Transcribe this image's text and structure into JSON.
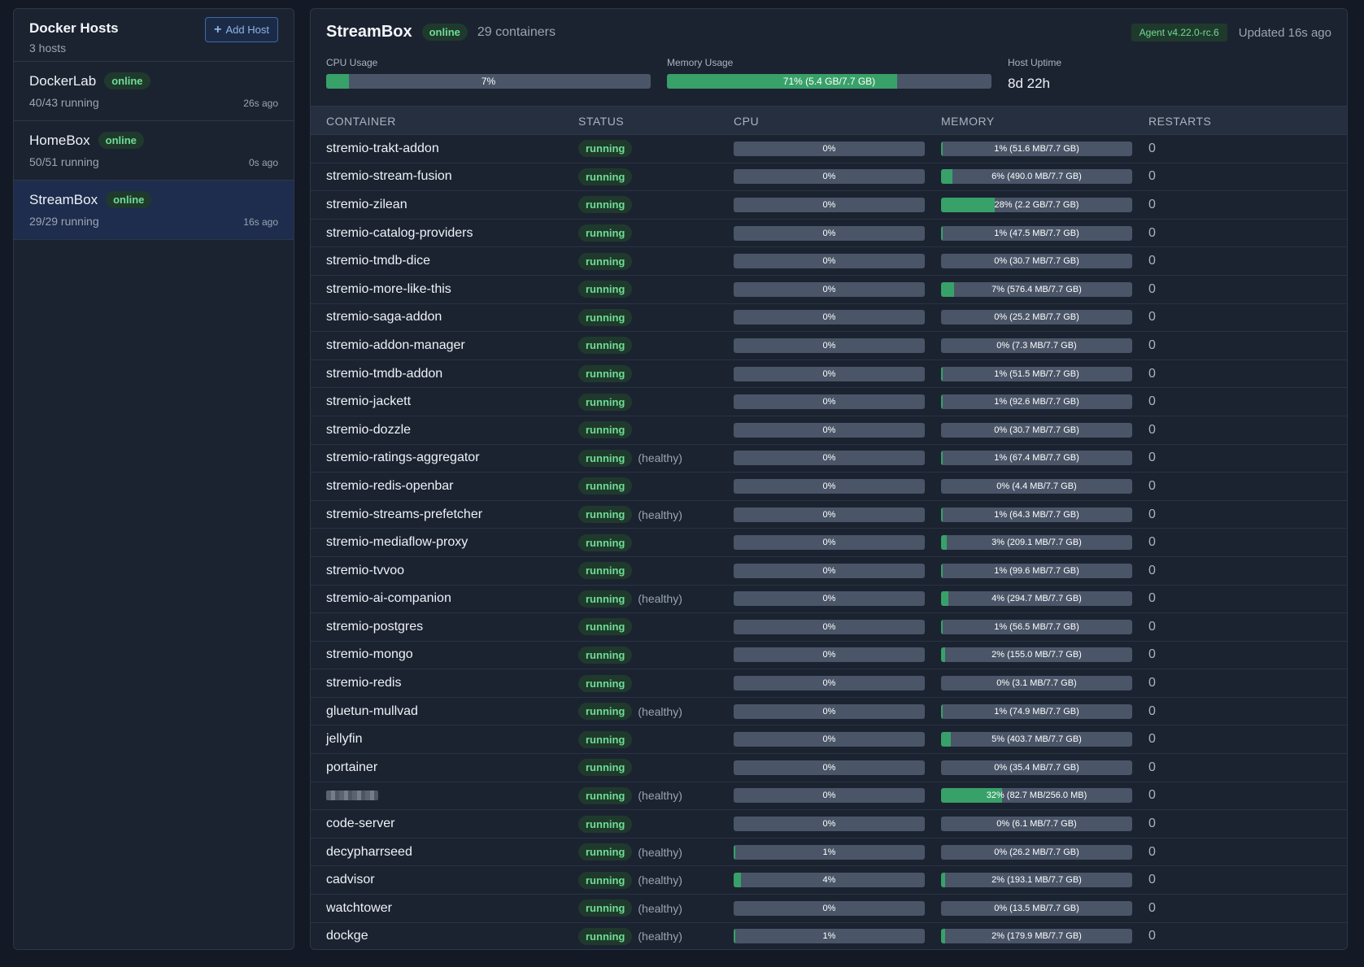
{
  "sidebar": {
    "title": "Docker Hosts",
    "subtitle": "3 hosts",
    "add_host_label": "Add Host",
    "hosts": [
      {
        "name": "DockerLab",
        "status": "online",
        "running": "40/43 running",
        "ago": "26s ago"
      },
      {
        "name": "HomeBox",
        "status": "online",
        "running": "50/51 running",
        "ago": "0s ago"
      },
      {
        "name": "StreamBox",
        "status": "online",
        "running": "29/29 running",
        "ago": "16s ago"
      }
    ]
  },
  "header": {
    "title": "StreamBox",
    "status": "online",
    "container_count": "29 containers",
    "agent": "Agent v4.22.0-rc.6",
    "updated": "Updated 16s ago",
    "cpu_label": "CPU Usage",
    "cpu_text": "7%",
    "cpu_fraction": 0.07,
    "mem_label": "Memory Usage",
    "mem_text": "71% (5.4 GB/7.7 GB)",
    "mem_fraction": 0.71,
    "uptime_label": "Host Uptime",
    "uptime_value": "8d 22h"
  },
  "table": {
    "columns": [
      "CONTAINER",
      "STATUS",
      "CPU",
      "MEMORY",
      "RESTARTS"
    ],
    "rows": [
      {
        "name": "stremio-trakt-addon",
        "status": "running",
        "health": "",
        "cpu": 0,
        "cpu_text": "0%",
        "mem": 1,
        "mem_text": "1% (51.6 MB/7.7 GB)",
        "restarts": "0"
      },
      {
        "name": "stremio-stream-fusion",
        "status": "running",
        "health": "",
        "cpu": 0,
        "cpu_text": "0%",
        "mem": 6,
        "mem_text": "6% (490.0 MB/7.7 GB)",
        "restarts": "0"
      },
      {
        "name": "stremio-zilean",
        "status": "running",
        "health": "",
        "cpu": 0,
        "cpu_text": "0%",
        "mem": 28,
        "mem_text": "28% (2.2 GB/7.7 GB)",
        "restarts": "0"
      },
      {
        "name": "stremio-catalog-providers",
        "status": "running",
        "health": "",
        "cpu": 0,
        "cpu_text": "0%",
        "mem": 1,
        "mem_text": "1% (47.5 MB/7.7 GB)",
        "restarts": "0"
      },
      {
        "name": "stremio-tmdb-dice",
        "status": "running",
        "health": "",
        "cpu": 0,
        "cpu_text": "0%",
        "mem": 0,
        "mem_text": "0% (30.7 MB/7.7 GB)",
        "restarts": "0"
      },
      {
        "name": "stremio-more-like-this",
        "status": "running",
        "health": "",
        "cpu": 0,
        "cpu_text": "0%",
        "mem": 7,
        "mem_text": "7% (576.4 MB/7.7 GB)",
        "restarts": "0"
      },
      {
        "name": "stremio-saga-addon",
        "status": "running",
        "health": "",
        "cpu": 0,
        "cpu_text": "0%",
        "mem": 0,
        "mem_text": "0% (25.2 MB/7.7 GB)",
        "restarts": "0"
      },
      {
        "name": "stremio-addon-manager",
        "status": "running",
        "health": "",
        "cpu": 0,
        "cpu_text": "0%",
        "mem": 0,
        "mem_text": "0% (7.3 MB/7.7 GB)",
        "restarts": "0"
      },
      {
        "name": "stremio-tmdb-addon",
        "status": "running",
        "health": "",
        "cpu": 0,
        "cpu_text": "0%",
        "mem": 1,
        "mem_text": "1% (51.5 MB/7.7 GB)",
        "restarts": "0"
      },
      {
        "name": "stremio-jackett",
        "status": "running",
        "health": "",
        "cpu": 0,
        "cpu_text": "0%",
        "mem": 1,
        "mem_text": "1% (92.6 MB/7.7 GB)",
        "restarts": "0"
      },
      {
        "name": "stremio-dozzle",
        "status": "running",
        "health": "",
        "cpu": 0,
        "cpu_text": "0%",
        "mem": 0,
        "mem_text": "0% (30.7 MB/7.7 GB)",
        "restarts": "0"
      },
      {
        "name": "stremio-ratings-aggregator",
        "status": "running",
        "health": "(healthy)",
        "cpu": 0,
        "cpu_text": "0%",
        "mem": 1,
        "mem_text": "1% (67.4 MB/7.7 GB)",
        "restarts": "0"
      },
      {
        "name": "stremio-redis-openbar",
        "status": "running",
        "health": "",
        "cpu": 0,
        "cpu_text": "0%",
        "mem": 0,
        "mem_text": "0% (4.4 MB/7.7 GB)",
        "restarts": "0"
      },
      {
        "name": "stremio-streams-prefetcher",
        "status": "running",
        "health": "(healthy)",
        "cpu": 0,
        "cpu_text": "0%",
        "mem": 1,
        "mem_text": "1% (64.3 MB/7.7 GB)",
        "restarts": "0"
      },
      {
        "name": "stremio-mediaflow-proxy",
        "status": "running",
        "health": "",
        "cpu": 0,
        "cpu_text": "0%",
        "mem": 3,
        "mem_text": "3% (209.1 MB/7.7 GB)",
        "restarts": "0"
      },
      {
        "name": "stremio-tvvoo",
        "status": "running",
        "health": "",
        "cpu": 0,
        "cpu_text": "0%",
        "mem": 1,
        "mem_text": "1% (99.6 MB/7.7 GB)",
        "restarts": "0"
      },
      {
        "name": "stremio-ai-companion",
        "status": "running",
        "health": "(healthy)",
        "cpu": 0,
        "cpu_text": "0%",
        "mem": 4,
        "mem_text": "4% (294.7 MB/7.7 GB)",
        "restarts": "0"
      },
      {
        "name": "stremio-postgres",
        "status": "running",
        "health": "",
        "cpu": 0,
        "cpu_text": "0%",
        "mem": 1,
        "mem_text": "1% (56.5 MB/7.7 GB)",
        "restarts": "0"
      },
      {
        "name": "stremio-mongo",
        "status": "running",
        "health": "",
        "cpu": 0,
        "cpu_text": "0%",
        "mem": 2,
        "mem_text": "2% (155.0 MB/7.7 GB)",
        "restarts": "0"
      },
      {
        "name": "stremio-redis",
        "status": "running",
        "health": "",
        "cpu": 0,
        "cpu_text": "0%",
        "mem": 0,
        "mem_text": "0% (3.1 MB/7.7 GB)",
        "restarts": "0"
      },
      {
        "name": "gluetun-mullvad",
        "status": "running",
        "health": "(healthy)",
        "cpu": 0,
        "cpu_text": "0%",
        "mem": 1,
        "mem_text": "1% (74.9 MB/7.7 GB)",
        "restarts": "0"
      },
      {
        "name": "jellyfin",
        "status": "running",
        "health": "",
        "cpu": 0,
        "cpu_text": "0%",
        "mem": 5,
        "mem_text": "5% (403.7 MB/7.7 GB)",
        "restarts": "0"
      },
      {
        "name": "portainer",
        "status": "running",
        "health": "",
        "cpu": 0,
        "cpu_text": "0%",
        "mem": 0,
        "mem_text": "0% (35.4 MB/7.7 GB)",
        "restarts": "0"
      },
      {
        "name": "",
        "redacted": true,
        "status": "running",
        "health": "(healthy)",
        "cpu": 0,
        "cpu_text": "0%",
        "mem": 32,
        "mem_text": "32% (82.7 MB/256.0 MB)",
        "restarts": "0"
      },
      {
        "name": "code-server",
        "status": "running",
        "health": "",
        "cpu": 0,
        "cpu_text": "0%",
        "mem": 0,
        "mem_text": "0% (6.1 MB/7.7 GB)",
        "restarts": "0"
      },
      {
        "name": "decypharrseed",
        "status": "running",
        "health": "(healthy)",
        "cpu": 1,
        "cpu_text": "1%",
        "mem": 0,
        "mem_text": "0% (26.2 MB/7.7 GB)",
        "restarts": "0"
      },
      {
        "name": "cadvisor",
        "status": "running",
        "health": "(healthy)",
        "cpu": 4,
        "cpu_text": "4%",
        "mem": 2,
        "mem_text": "2% (193.1 MB/7.7 GB)",
        "restarts": "0"
      },
      {
        "name": "watchtower",
        "status": "running",
        "health": "(healthy)",
        "cpu": 0,
        "cpu_text": "0%",
        "mem": 0,
        "mem_text": "0% (13.5 MB/7.7 GB)",
        "restarts": "0"
      },
      {
        "name": "dockge",
        "status": "running",
        "health": "(healthy)",
        "cpu": 1,
        "cpu_text": "1%",
        "mem": 2,
        "mem_text": "2% (179.9 MB/7.7 GB)",
        "restarts": "0"
      }
    ]
  },
  "colors": {
    "accent_green": "#38a169",
    "badge_green_text": "#6fdc95",
    "selected_bg": "#1e2d4d",
    "link_blue": "#8fb4ea"
  },
  "icons": {
    "add": "plus-icon"
  }
}
